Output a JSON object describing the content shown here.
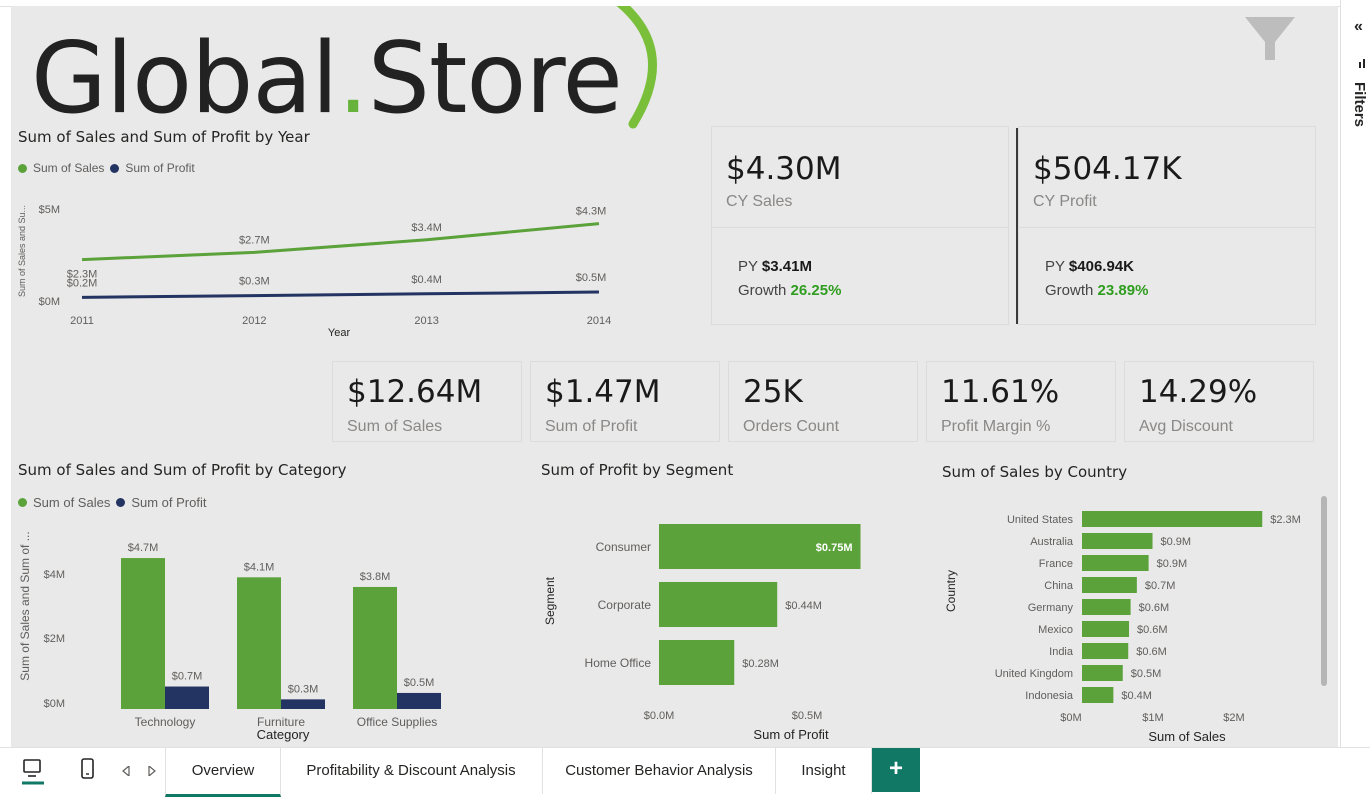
{
  "logo": {
    "text_main": "Global",
    "text_dot": ".",
    "text_end": "Store"
  },
  "year_chart": {
    "title": "Sum of Sales and Sum of Profit by Year",
    "legend": [
      "Sum of Sales",
      "Sum of Profit"
    ],
    "ylabel": "Sum of Sales and Su...",
    "xlabel": "Year",
    "yticks": [
      "$5M",
      "$0M"
    ]
  },
  "cy_sales": {
    "value": "$4.30M",
    "label": "CY Sales",
    "py_label": "PY",
    "py_value": "$3.41M",
    "growth_label": "Growth",
    "growth_value": "26.25%"
  },
  "cy_profit": {
    "value": "$504.17K",
    "label": "CY Profit",
    "py_label": "PY",
    "py_value": "$406.94K",
    "growth_label": "Growth",
    "growth_value": "23.89%"
  },
  "kpis": [
    {
      "value": "$12.64M",
      "label": "Sum of Sales"
    },
    {
      "value": "$1.47M",
      "label": "Sum of Profit"
    },
    {
      "value": "25K",
      "label": "Orders Count"
    },
    {
      "value": "11.61%",
      "label": "Profit Margin %"
    },
    {
      "value": "14.29%",
      "label": "Avg Discount"
    }
  ],
  "category_chart": {
    "title": "Sum of Sales and Sum of Profit by Category",
    "legend": [
      "Sum of Sales",
      "Sum of Profit"
    ],
    "ylabel": "Sum of Sales and Sum of ...",
    "xlabel": "Category",
    "yticks": [
      "$4M",
      "$2M",
      "$0M"
    ]
  },
  "segment_chart": {
    "title": "Sum of Profit by Segment",
    "ylabel": "Segment",
    "xlabel": "Sum of Profit",
    "xticks": [
      "$0.0M",
      "$0.5M"
    ]
  },
  "country_chart": {
    "title": "Sum of Sales by Country",
    "ylabel": "Country",
    "xlabel": "Sum of Sales",
    "xticks": [
      "$0M",
      "$1M",
      "$2M"
    ]
  },
  "chart_data": [
    {
      "type": "line",
      "title": "Sum of Sales and Sum of Profit by Year",
      "x": [
        "2011",
        "2012",
        "2013",
        "2014"
      ],
      "series": [
        {
          "name": "Sum of Sales",
          "values": [
            2.3,
            2.7,
            3.4,
            4.3
          ],
          "labels": [
            "$2.3M",
            "$2.7M",
            "$3.4M",
            "$4.3M"
          ],
          "color": "#5ba23a"
        },
        {
          "name": "Sum of Profit",
          "values": [
            0.2,
            0.3,
            0.4,
            0.5
          ],
          "labels": [
            "$0.2M",
            "$0.3M",
            "$0.4M",
            "$0.5M"
          ],
          "color": "#243462"
        }
      ],
      "xlabel": "Year",
      "ylabel": "Sum of Sales and Su...",
      "ylim": [
        0,
        5
      ]
    },
    {
      "type": "bar",
      "title": "Sum of Sales and Sum of Profit by Category",
      "categories": [
        "Technology",
        "Furniture",
        "Office Supplies"
      ],
      "series": [
        {
          "name": "Sum of Sales",
          "values": [
            4.7,
            4.1,
            3.8
          ],
          "labels": [
            "$4.7M",
            "$4.1M",
            "$3.8M"
          ],
          "color": "#5ba23a"
        },
        {
          "name": "Sum of Profit",
          "values": [
            0.7,
            0.3,
            0.5
          ],
          "labels": [
            "$0.7M",
            "$0.3M",
            "$0.5M"
          ],
          "color": "#243462"
        }
      ],
      "xlabel": "Category",
      "ylim": [
        0,
        5.2
      ]
    },
    {
      "type": "bar",
      "orientation": "horizontal",
      "title": "Sum of Profit by Segment",
      "categories": [
        "Consumer",
        "Corporate",
        "Home Office"
      ],
      "values": [
        0.75,
        0.44,
        0.28
      ],
      "labels": [
        "$0.75M",
        "$0.44M",
        "$0.28M"
      ],
      "color": "#5ba23a",
      "xlabel": "Sum of Profit",
      "ylabel": "Segment",
      "xlim": [
        0,
        0.83
      ]
    },
    {
      "type": "bar",
      "orientation": "horizontal",
      "title": "Sum of Sales by Country",
      "categories": [
        "United States",
        "Australia",
        "France",
        "China",
        "Germany",
        "Mexico",
        "India",
        "United Kingdom",
        "Indonesia"
      ],
      "values": [
        2.3,
        0.9,
        0.85,
        0.7,
        0.62,
        0.6,
        0.59,
        0.52,
        0.4
      ],
      "labels": [
        "$2.3M",
        "$0.9M",
        "$0.9M",
        "$0.7M",
        "$0.6M",
        "$0.6M",
        "$0.6M",
        "$0.5M",
        "$0.4M"
      ],
      "color": "#5ba23a",
      "xlabel": "Sum of Sales",
      "ylabel": "Country",
      "xlim": [
        0,
        2.45
      ]
    }
  ],
  "right_pane": {
    "collapse": "«",
    "filters": "Filters"
  },
  "tabs": [
    {
      "label": "Overview",
      "active": true
    },
    {
      "label": "Profitability & Discount Analysis"
    },
    {
      "label": "Customer Behavior Analysis"
    },
    {
      "label": "Insight"
    }
  ],
  "add_tab": "+"
}
